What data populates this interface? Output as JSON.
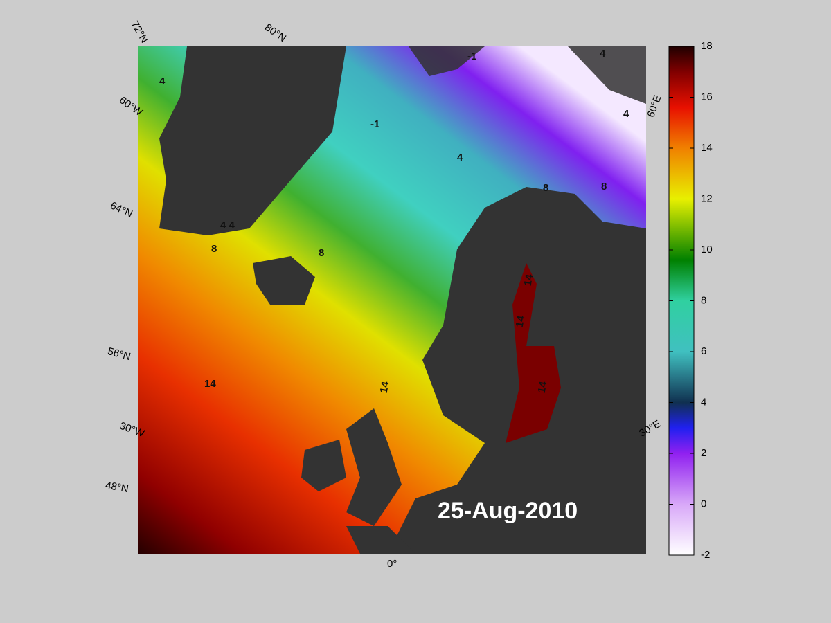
{
  "map": {
    "date": "25-Aug-2010",
    "grid_labels": {
      "lat72": "72°N",
      "lat80": "80°N",
      "lon60w": "60°W",
      "lat64": "64°N",
      "lat56": "56°N",
      "lon30w": "30°W",
      "lat48": "48°N",
      "lon0": "0°",
      "lon60e": "60°E",
      "lon30e": "30°E"
    },
    "contour_labels": [
      "4",
      "-1",
      "-1",
      "4",
      "4",
      "4",
      "8",
      "8",
      "8",
      "8",
      "4 4",
      "14",
      "14",
      "14",
      "14",
      "14"
    ],
    "colorbar": {
      "ticks": [
        -2,
        0,
        2,
        4,
        6,
        8,
        10,
        12,
        14,
        16,
        18
      ]
    }
  }
}
